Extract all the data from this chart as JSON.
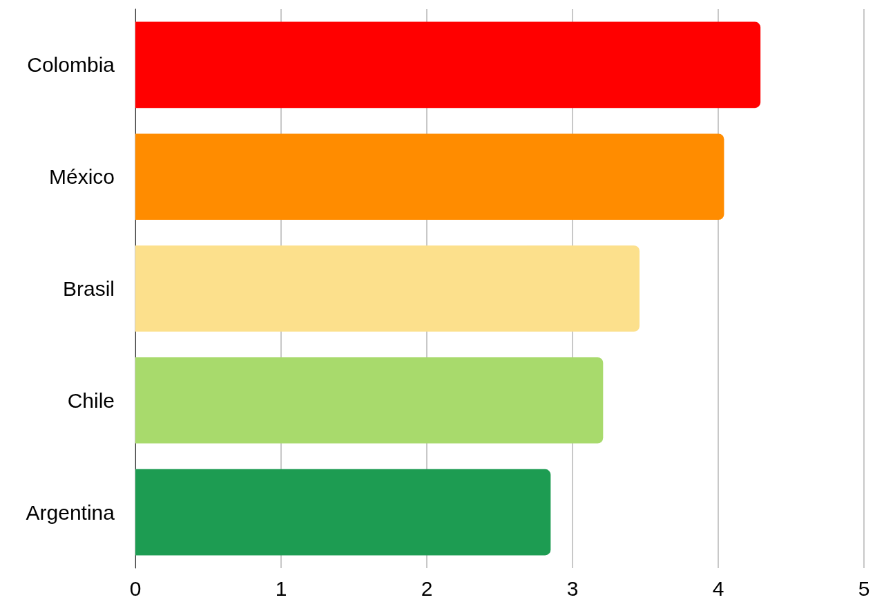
{
  "chart_data": {
    "type": "bar",
    "orientation": "horizontal",
    "categories": [
      "Colombia",
      "México",
      "Brasil",
      "Chile",
      "Argentina"
    ],
    "values": [
      4.29,
      4.04,
      3.46,
      3.21,
      2.85
    ],
    "colors": [
      "#ff0000",
      "#ff8c00",
      "#fce08c",
      "#a8da6c",
      "#1d9c52"
    ],
    "xlim": [
      0,
      5
    ],
    "xticks": [
      0,
      1,
      2,
      3,
      4,
      5
    ],
    "grid": "x"
  }
}
